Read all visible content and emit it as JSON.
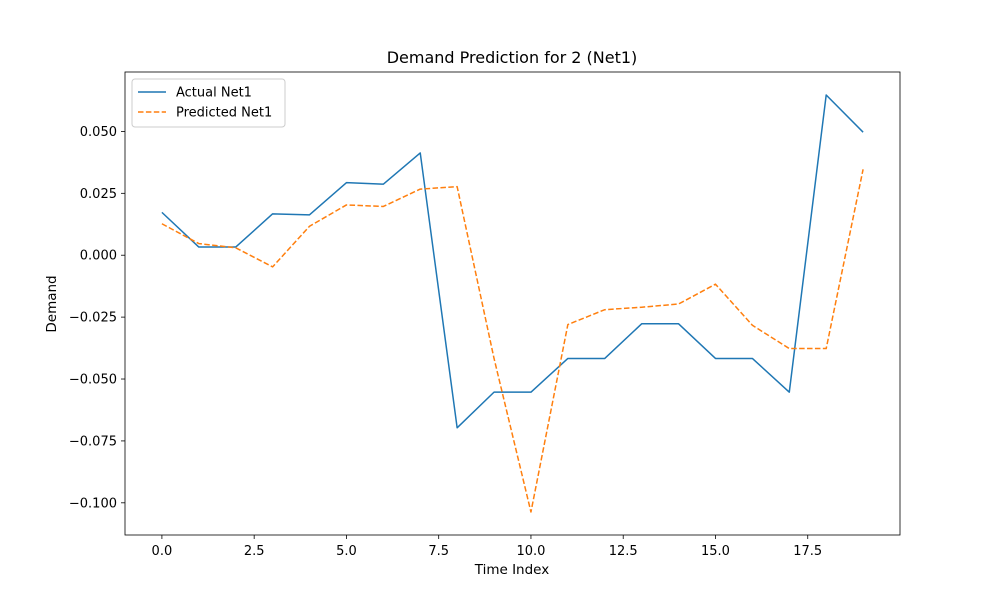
{
  "chart_data": {
    "type": "line",
    "title": "Demand Prediction for 2 (Net1)",
    "xlabel": "Time Index",
    "ylabel": "Demand",
    "xlim": [
      -1.0,
      20.0
    ],
    "ylim": [
      -0.113,
      0.074
    ],
    "x_ticks": [
      0.0,
      2.5,
      5.0,
      7.5,
      10.0,
      12.5,
      15.0,
      17.5
    ],
    "x_tick_labels": [
      "0.0",
      "2.5",
      "5.0",
      "7.5",
      "10.0",
      "12.5",
      "15.0",
      "17.5"
    ],
    "y_ticks": [
      0.05,
      0.025,
      0.0,
      -0.025,
      -0.05,
      -0.075,
      -0.1
    ],
    "y_tick_labels": [
      "0.050",
      "0.025",
      "0.000",
      "−0.025",
      "−0.050",
      "−0.075",
      "−0.100"
    ],
    "grid": false,
    "legend_position": "top-left",
    "x": [
      0,
      1,
      2,
      3,
      4,
      5,
      6,
      7,
      8,
      9,
      10,
      11,
      12,
      13,
      14,
      15,
      16,
      17,
      18,
      19
    ],
    "series": [
      {
        "name": "Actual Net1",
        "color": "#1f77b4",
        "style": "solid",
        "values": [
          0.0173,
          0.0033,
          0.0033,
          0.0167,
          0.0163,
          0.0293,
          0.0287,
          0.0413,
          -0.0697,
          -0.0553,
          -0.0553,
          -0.0417,
          -0.0417,
          -0.0277,
          -0.0277,
          -0.0417,
          -0.0417,
          -0.0553,
          0.0647,
          0.0497
        ]
      },
      {
        "name": "Predicted Net1",
        "color": "#ff7f0e",
        "style": "dashed",
        "values": [
          0.0127,
          0.0047,
          0.003,
          -0.0047,
          0.0117,
          0.0203,
          0.0197,
          0.0267,
          0.0277,
          -0.0417,
          -0.1037,
          -0.028,
          -0.022,
          -0.021,
          -0.0197,
          -0.0117,
          -0.0283,
          -0.0377,
          -0.0377,
          0.0347
        ]
      }
    ]
  }
}
